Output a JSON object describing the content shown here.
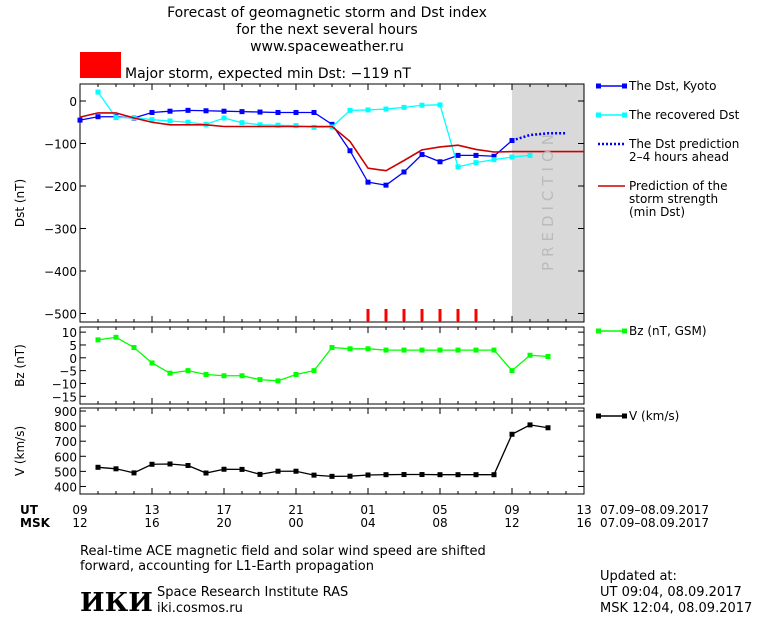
{
  "header": {
    "title_line1": "Forecast of geomagnetic storm and Dst index",
    "title_line2": "for the next several hours",
    "url": "www.spaceweather.ru",
    "storm_label": "Major storm, expected min Dst: −119 nT",
    "storm_color": "#ff0000"
  },
  "prediction_label": "PREDICTION",
  "footer": {
    "note_line1": "Real-time ACE magnetic field and solar wind speed are shifted",
    "note_line2": "forward, accounting for L1-Earth propagation",
    "logo": "ИКИ",
    "institute": "Space Research Institute RAS",
    "site": "iki.cosmos.ru",
    "updated_title": "Updated at:",
    "updated_ut": "UT   09:04, 08.09.2017",
    "updated_msk": "MSK 12:04, 08.09.2017"
  },
  "time_axis": {
    "ut_label": "UT",
    "msk_label": "MSK",
    "ut_ticks": [
      "09",
      "13",
      "17",
      "21",
      "01",
      "05",
      "09",
      "13"
    ],
    "msk_ticks": [
      "12",
      "16",
      "20",
      "00",
      "04",
      "08",
      "12",
      "16"
    ],
    "ut_range": "07.09–08.09.2017",
    "msk_range": "07.09–08.09.2017"
  },
  "chart_data": [
    {
      "type": "line",
      "x_unit": "hours from 09 UT 07.09.2017",
      "xlim": [
        0,
        28
      ],
      "ylabel": "Dst (nT)",
      "ylim": [
        -520,
        40
      ],
      "yticks": [
        0,
        -100,
        -200,
        -300,
        -400,
        -500
      ],
      "prediction_region": [
        24,
        28
      ],
      "storm_marker_hours": [
        16,
        17,
        18,
        19,
        20,
        21,
        22
      ],
      "series": [
        {
          "name": "The Dst, Kyoto",
          "color": "#0000ff",
          "marker": "square",
          "dash": "none",
          "x": [
            0,
            1,
            2,
            3,
            4,
            5,
            6,
            7,
            8,
            9,
            10,
            11,
            12,
            13,
            14,
            15,
            16,
            17,
            18,
            19,
            20,
            21,
            22,
            23,
            24
          ],
          "y": [
            -45,
            -37,
            -37,
            -40,
            -27,
            -24,
            -22,
            -23,
            -24,
            -25,
            -26,
            -27,
            -27,
            -27,
            -55,
            -117,
            -191,
            -198,
            -167,
            -126,
            -143,
            -128,
            -128,
            -130,
            -93
          ]
        },
        {
          "name": "The recovered Dst",
          "color": "#00ffff",
          "marker": "square",
          "dash": "none",
          "x": [
            1,
            2,
            3,
            4,
            5,
            6,
            7,
            8,
            9,
            10,
            11,
            12,
            13,
            14,
            15,
            16,
            17,
            18,
            19,
            20,
            21,
            22,
            23,
            24,
            25
          ],
          "y": [
            21,
            -39,
            -39,
            -44,
            -47,
            -50,
            -55,
            -40,
            -51,
            -56,
            -57,
            -58,
            -62,
            -61,
            -22,
            -21,
            -19,
            -15,
            -10,
            -9,
            -155,
            -145,
            -138,
            -132,
            -128
          ]
        },
        {
          "name": "The Dst prediction\n2–4 hours ahead",
          "color": "#0000ff",
          "marker": "none",
          "dash": "dot",
          "x": [
            24,
            25,
            26,
            27
          ],
          "y": [
            -93,
            -80,
            -76,
            -76
          ]
        },
        {
          "name": "Prediction of the\nstorm strength\n(min Dst)",
          "color": "#cc0000",
          "marker": "none",
          "dash": "none",
          "x": [
            0,
            1,
            2,
            3,
            4,
            5,
            6,
            7,
            8,
            9,
            10,
            11,
            12,
            13,
            14,
            15,
            16,
            17,
            18,
            19,
            20,
            21,
            22,
            23,
            24,
            28
          ],
          "y": [
            -38,
            -28,
            -28,
            -40,
            -50,
            -56,
            -56,
            -56,
            -60,
            -60,
            -60,
            -60,
            -60,
            -60,
            -60,
            -95,
            -158,
            -164,
            -140,
            -115,
            -108,
            -104,
            -114,
            -120,
            -119,
            -119
          ]
        }
      ]
    },
    {
      "type": "line",
      "ylabel": "Bz (nT)",
      "ylim": [
        -18,
        12
      ],
      "yticks": [
        10,
        5,
        0,
        -5,
        -10,
        -15
      ],
      "series": [
        {
          "name": "Bz (nT, GSM)",
          "color": "#00ff00",
          "marker": "square",
          "x": [
            1,
            2,
            3,
            4,
            5,
            6,
            7,
            8,
            9,
            10,
            11,
            12,
            13,
            14,
            15,
            16,
            17,
            18,
            19,
            20,
            21,
            22,
            23,
            24,
            25,
            26
          ],
          "y": [
            7,
            8,
            4,
            -2,
            -6,
            -5,
            -6.5,
            -7,
            -7,
            -8.5,
            -9,
            -6.5,
            -5,
            4,
            3.5,
            3.5,
            3,
            3,
            3,
            3,
            3,
            3,
            3,
            -5,
            1,
            0.5
          ]
        }
      ]
    },
    {
      "type": "line",
      "ylabel": "V (km/s)",
      "ylim": [
        350,
        920
      ],
      "yticks": [
        900,
        800,
        700,
        600,
        500,
        400
      ],
      "series": [
        {
          "name": "V (km/s)",
          "color": "#000000",
          "marker": "square",
          "x": [
            1,
            2,
            3,
            4,
            5,
            6,
            7,
            8,
            9,
            10,
            11,
            12,
            13,
            14,
            15,
            16,
            17,
            18,
            19,
            20,
            21,
            22,
            23,
            24,
            25,
            26
          ],
          "y": [
            527,
            517,
            490,
            547,
            549,
            539,
            489,
            514,
            513,
            480,
            501,
            501,
            475,
            467,
            468,
            476,
            478,
            479,
            479,
            478,
            478,
            478,
            478,
            746,
            808,
            789
          ]
        }
      ]
    }
  ]
}
